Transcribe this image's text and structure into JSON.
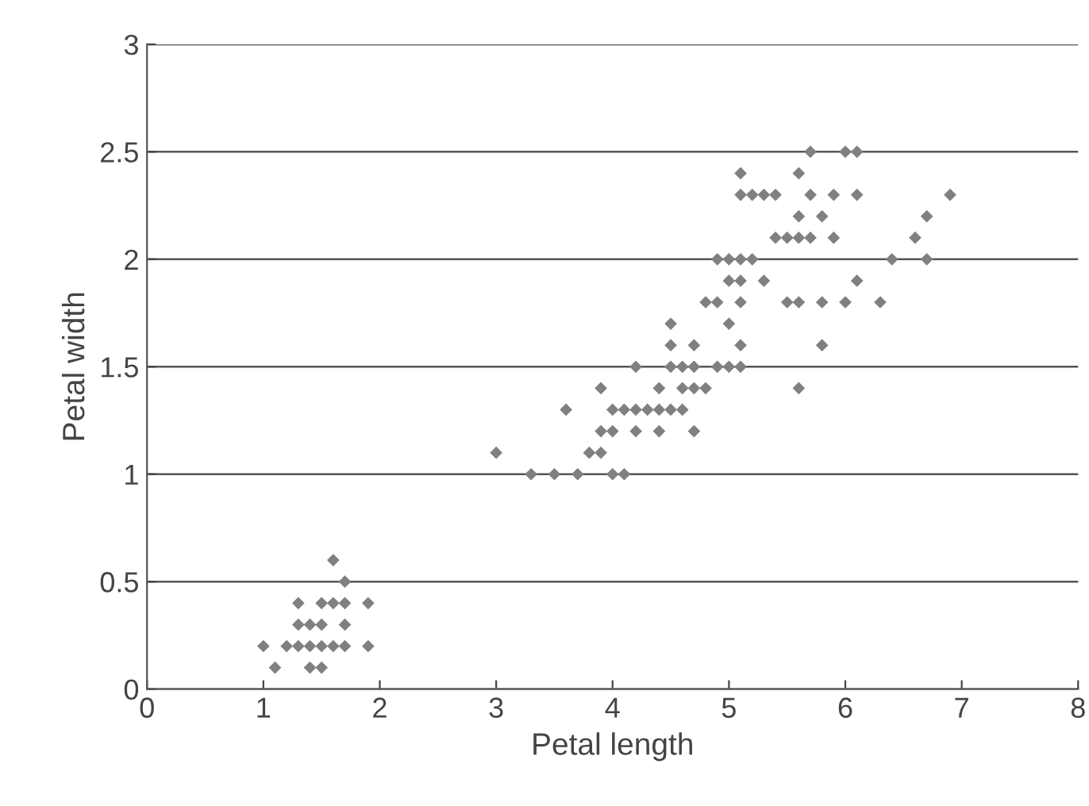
{
  "chart_data": {
    "type": "scatter",
    "xlabel": "Petal length",
    "ylabel": "Petal width",
    "x": [
      1.0,
      1.1,
      1.2,
      1.3,
      1.3,
      1.3,
      1.4,
      1.4,
      1.4,
      1.5,
      1.5,
      1.5,
      1.5,
      1.6,
      1.6,
      1.6,
      1.7,
      1.7,
      1.7,
      1.7,
      1.9,
      1.9,
      4.7,
      4.5,
      4.9,
      4.0,
      4.6,
      4.5,
      4.7,
      3.3,
      4.6,
      3.9,
      3.5,
      4.2,
      4.0,
      3.6,
      4.4,
      4.1,
      3.9,
      4.8,
      4.7,
      4.3,
      4.8,
      5.0,
      3.8,
      3.7,
      3.9,
      5.1,
      4.5,
      4.7,
      4.4,
      4.1,
      4.4,
      4.6,
      4.0,
      4.2,
      4.2,
      3.0,
      6.0,
      5.1,
      5.9,
      5.6,
      5.8,
      6.6,
      4.5,
      6.3,
      5.8,
      6.1,
      5.1,
      5.3,
      5.5,
      5.0,
      5.1,
      5.3,
      5.5,
      6.7,
      6.9,
      5.0,
      5.7,
      4.9,
      6.7,
      4.9,
      5.7,
      6.0,
      5.6,
      5.8,
      6.1,
      6.4,
      5.6,
      5.1,
      5.6,
      6.1,
      5.6,
      5.4,
      5.1,
      5.9,
      5.7,
      5.2,
      5.0,
      5.2,
      5.4,
      5.1
    ],
    "series": [
      {
        "color": "#808080",
        "values": [
          0.2,
          0.1,
          0.2,
          0.2,
          0.3,
          0.4,
          0.1,
          0.2,
          0.3,
          0.1,
          0.2,
          0.3,
          0.4,
          0.2,
          0.4,
          0.6,
          0.2,
          0.3,
          0.4,
          0.5,
          0.2,
          0.4,
          1.4,
          1.5,
          1.5,
          1.3,
          1.5,
          1.3,
          1.6,
          1.0,
          1.3,
          1.4,
          1.0,
          1.5,
          1.0,
          1.3,
          1.4,
          1.0,
          1.1,
          1.8,
          1.2,
          1.3,
          1.4,
          1.7,
          1.1,
          1.0,
          1.2,
          1.6,
          1.6,
          1.5,
          1.3,
          1.3,
          1.2,
          1.4,
          1.2,
          1.3,
          1.2,
          1.1,
          2.5,
          1.9,
          2.1,
          1.8,
          2.2,
          2.1,
          1.7,
          1.8,
          1.8,
          2.5,
          2.0,
          1.9,
          2.1,
          2.0,
          2.4,
          2.3,
          1.8,
          2.2,
          2.3,
          1.5,
          2.3,
          2.0,
          2.0,
          1.8,
          2.1,
          1.8,
          2.1,
          1.6,
          1.9,
          2.0,
          2.2,
          1.5,
          1.4,
          2.3,
          2.4,
          2.1,
          2.3,
          2.3,
          2.5,
          2.3,
          1.9,
          2.0,
          2.3,
          1.8
        ]
      }
    ],
    "xlim": [
      0,
      8
    ],
    "xticks": [
      0,
      1,
      2,
      3,
      4,
      5,
      6,
      7,
      8
    ],
    "ylim": [
      0,
      3
    ],
    "yticks": [
      0,
      0.5,
      1,
      1.5,
      2,
      2.5,
      3
    ],
    "grid": "y",
    "marker": "diamond",
    "legend": false
  }
}
